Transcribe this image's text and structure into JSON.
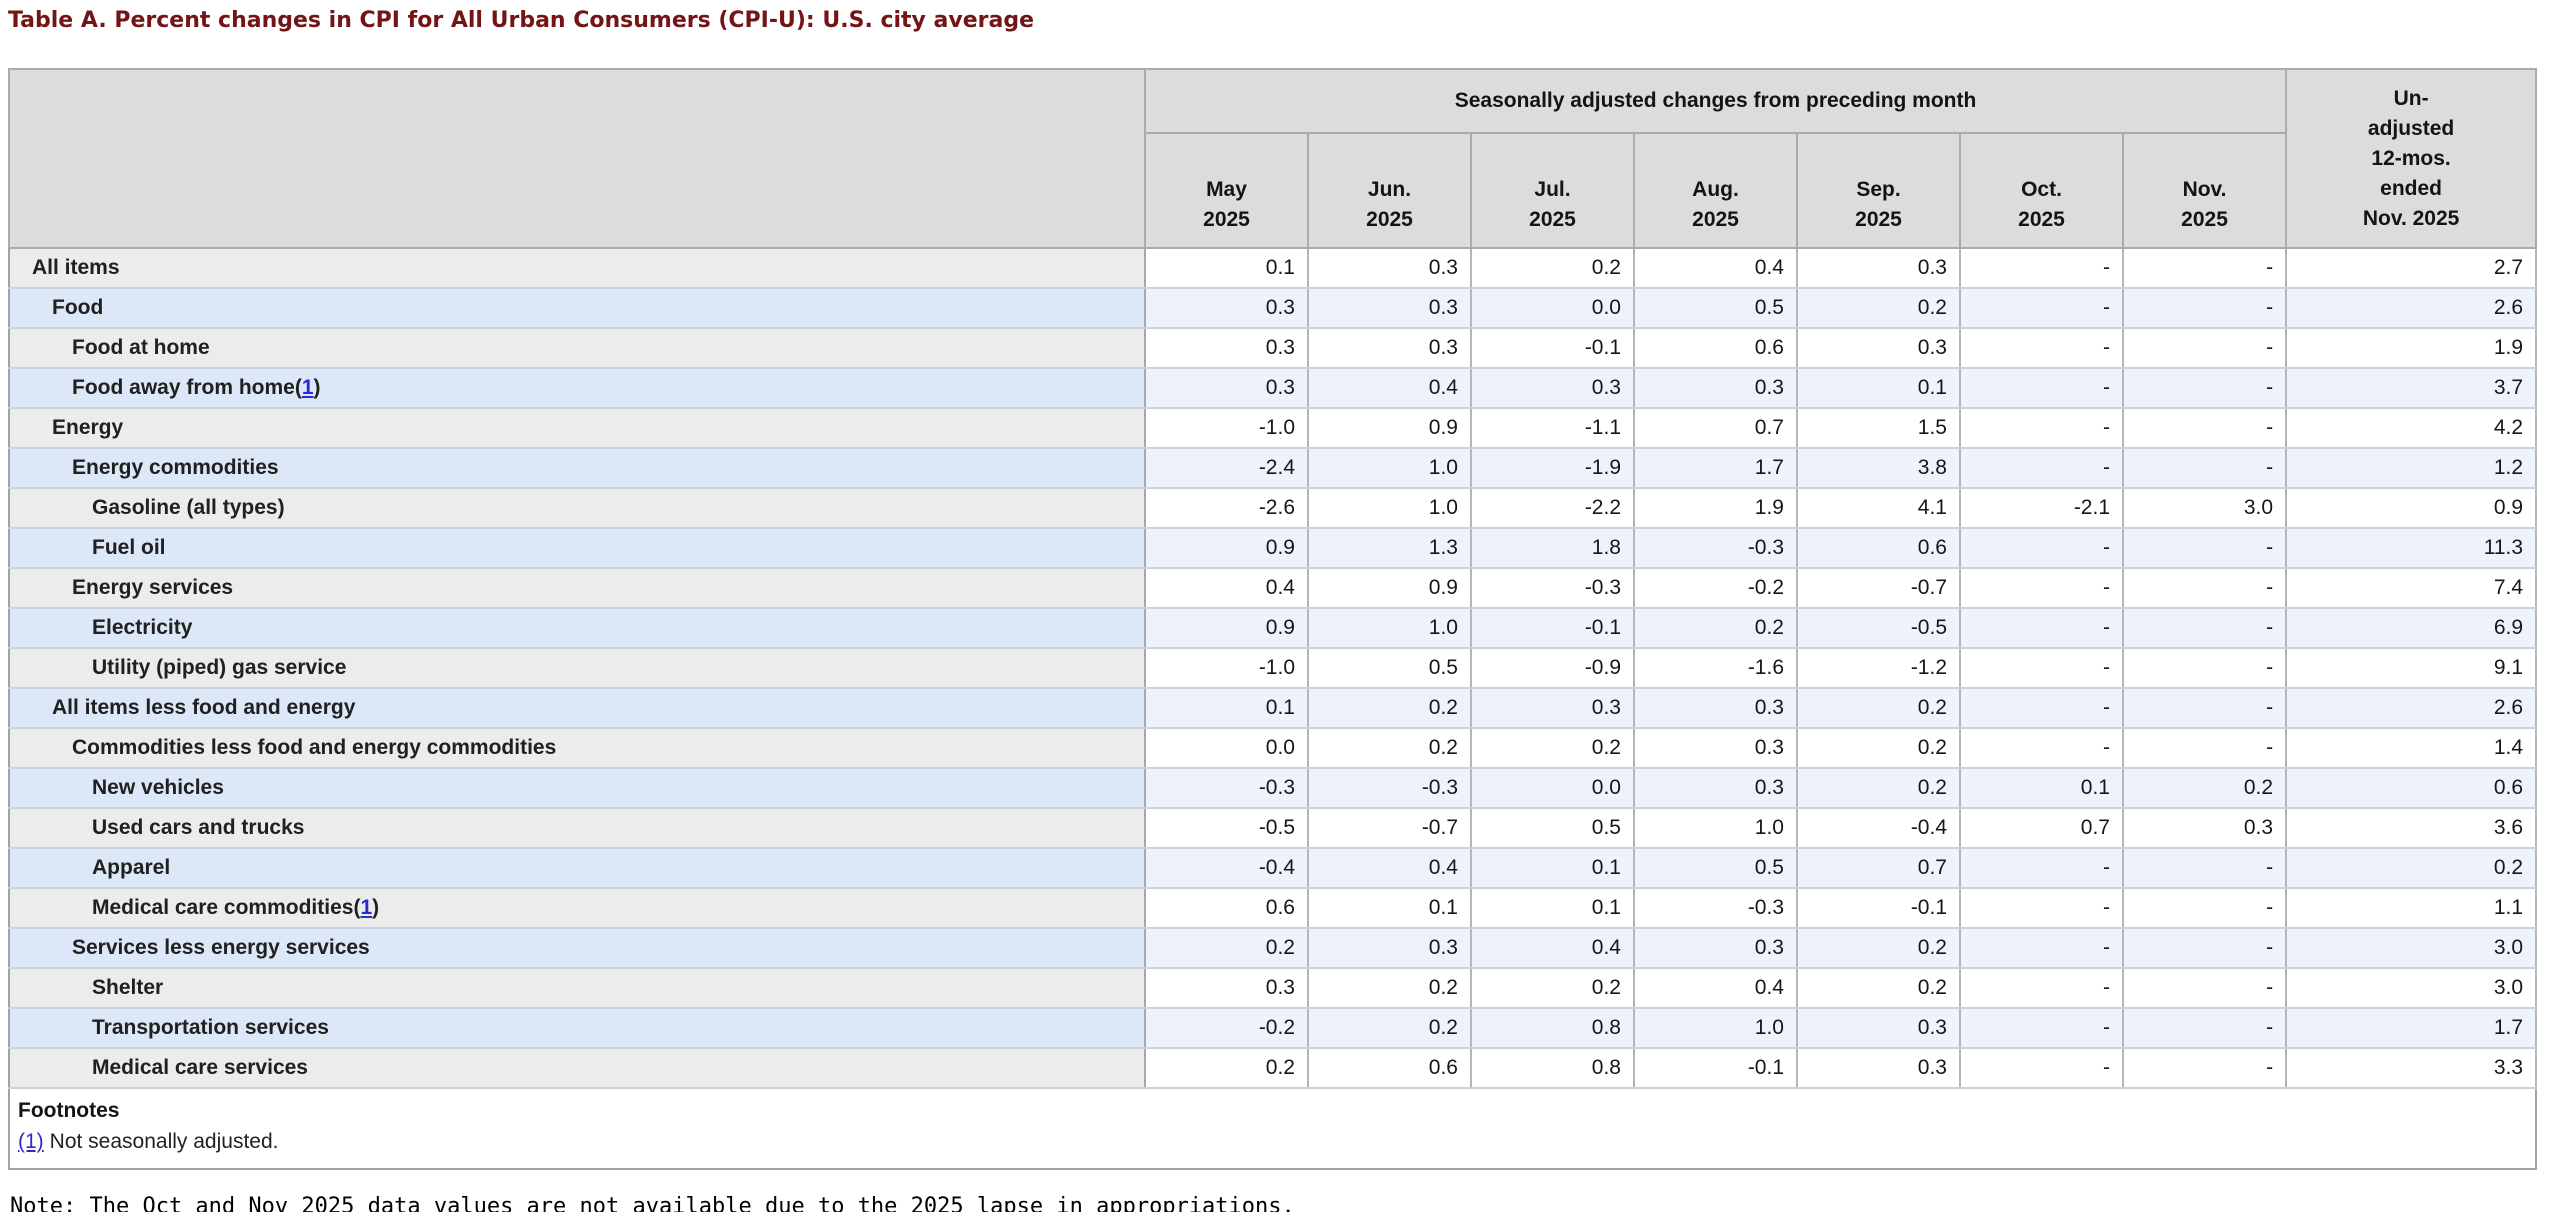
{
  "title": "Table A. Percent changes in CPI for All Urban Consumers (CPI-U): U.S. city average",
  "colors": {
    "title_maroon": "#731516",
    "link_blue": "#2a2ad0",
    "header_gray": "#dcdcdc",
    "row_gray_label": "#ececec",
    "row_blue_label": "#dce7f8",
    "row_blue_data": "#edf2fb"
  },
  "table": {
    "group_header": "Seasonally adjusted changes from preceding month",
    "unadjusted_header": "Un-\nadjusted\n12-mos.\nended\nNov. 2025",
    "month_headers": [
      "May\n2025",
      "Jun.\n2025",
      "Jul.\n2025",
      "Aug.\n2025",
      "Sep.\n2025",
      "Oct.\n2025",
      "Nov.\n2025"
    ],
    "rows": [
      {
        "label": "All items",
        "level": 0,
        "footnote": null,
        "values": [
          "0.1",
          "0.3",
          "0.2",
          "0.4",
          "0.3",
          "-",
          "-",
          "2.7"
        ]
      },
      {
        "label": "Food",
        "level": 1,
        "footnote": null,
        "values": [
          "0.3",
          "0.3",
          "0.0",
          "0.5",
          "0.2",
          "-",
          "-",
          "2.6"
        ]
      },
      {
        "label": "Food at home",
        "level": 2,
        "footnote": null,
        "values": [
          "0.3",
          "0.3",
          "-0.1",
          "0.6",
          "0.3",
          "-",
          "-",
          "1.9"
        ]
      },
      {
        "label": "Food away from home",
        "level": 2,
        "footnote": "1",
        "values": [
          "0.3",
          "0.4",
          "0.3",
          "0.3",
          "0.1",
          "-",
          "-",
          "3.7"
        ]
      },
      {
        "label": "Energy",
        "level": 1,
        "footnote": null,
        "values": [
          "-1.0",
          "0.9",
          "-1.1",
          "0.7",
          "1.5",
          "-",
          "-",
          "4.2"
        ]
      },
      {
        "label": "Energy commodities",
        "level": 2,
        "footnote": null,
        "values": [
          "-2.4",
          "1.0",
          "-1.9",
          "1.7",
          "3.8",
          "-",
          "-",
          "1.2"
        ]
      },
      {
        "label": "Gasoline (all types)",
        "level": 3,
        "footnote": null,
        "values": [
          "-2.6",
          "1.0",
          "-2.2",
          "1.9",
          "4.1",
          "-2.1",
          "3.0",
          "0.9"
        ]
      },
      {
        "label": "Fuel oil",
        "level": 3,
        "footnote": null,
        "values": [
          "0.9",
          "1.3",
          "1.8",
          "-0.3",
          "0.6",
          "-",
          "-",
          "11.3"
        ]
      },
      {
        "label": "Energy services",
        "level": 2,
        "footnote": null,
        "values": [
          "0.4",
          "0.9",
          "-0.3",
          "-0.2",
          "-0.7",
          "-",
          "-",
          "7.4"
        ]
      },
      {
        "label": "Electricity",
        "level": 3,
        "footnote": null,
        "values": [
          "0.9",
          "1.0",
          "-0.1",
          "0.2",
          "-0.5",
          "-",
          "-",
          "6.9"
        ]
      },
      {
        "label": "Utility (piped) gas service",
        "level": 3,
        "footnote": null,
        "values": [
          "-1.0",
          "0.5",
          "-0.9",
          "-1.6",
          "-1.2",
          "-",
          "-",
          "9.1"
        ]
      },
      {
        "label": "All items less food and energy",
        "level": 1,
        "footnote": null,
        "values": [
          "0.1",
          "0.2",
          "0.3",
          "0.3",
          "0.2",
          "-",
          "-",
          "2.6"
        ]
      },
      {
        "label": "Commodities less food and energy commodities",
        "level": 2,
        "footnote": null,
        "values": [
          "0.0",
          "0.2",
          "0.2",
          "0.3",
          "0.2",
          "-",
          "-",
          "1.4"
        ]
      },
      {
        "label": "New vehicles",
        "level": 3,
        "footnote": null,
        "values": [
          "-0.3",
          "-0.3",
          "0.0",
          "0.3",
          "0.2",
          "0.1",
          "0.2",
          "0.6"
        ]
      },
      {
        "label": "Used cars and trucks",
        "level": 3,
        "footnote": null,
        "values": [
          "-0.5",
          "-0.7",
          "0.5",
          "1.0",
          "-0.4",
          "0.7",
          "0.3",
          "3.6"
        ]
      },
      {
        "label": "Apparel",
        "level": 3,
        "footnote": null,
        "values": [
          "-0.4",
          "0.4",
          "0.1",
          "0.5",
          "0.7",
          "-",
          "-",
          "0.2"
        ]
      },
      {
        "label": "Medical care commodities",
        "level": 3,
        "footnote": "1",
        "values": [
          "0.6",
          "0.1",
          "0.1",
          "-0.3",
          "-0.1",
          "-",
          "-",
          "1.1"
        ]
      },
      {
        "label": "Services less energy services",
        "level": 2,
        "footnote": null,
        "values": [
          "0.2",
          "0.3",
          "0.4",
          "0.3",
          "0.2",
          "-",
          "-",
          "3.0"
        ]
      },
      {
        "label": "Shelter",
        "level": 3,
        "footnote": null,
        "values": [
          "0.3",
          "0.2",
          "0.2",
          "0.4",
          "0.2",
          "-",
          "-",
          "3.0"
        ]
      },
      {
        "label": "Transportation services",
        "level": 3,
        "footnote": null,
        "values": [
          "-0.2",
          "0.2",
          "0.8",
          "1.0",
          "0.3",
          "-",
          "-",
          "1.7"
        ]
      },
      {
        "label": "Medical care services",
        "level": 3,
        "footnote": null,
        "values": [
          "0.2",
          "0.6",
          "0.8",
          "-0.1",
          "0.3",
          "-",
          "-",
          "3.3"
        ]
      }
    ]
  },
  "footnotes": {
    "heading": "Footnotes",
    "items": [
      {
        "marker": "(1)",
        "text": "Not seasonally adjusted."
      }
    ]
  },
  "note": "Note: The Oct and Nov 2025 data values are not available due to the 2025 lapse in appropriations."
}
